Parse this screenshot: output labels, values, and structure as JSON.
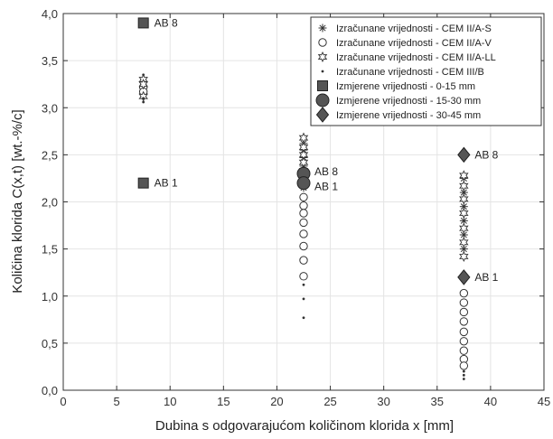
{
  "chart_data": {
    "type": "scatter",
    "title": "",
    "xlabel": "Dubina s odgovarajućom količinom klorida x [mm]",
    "ylabel": "Količina klorida C(x,t) [wt.-%/c]",
    "xlim": [
      0,
      45
    ],
    "ylim": [
      0,
      4.0
    ],
    "x_ticks": [
      0,
      5,
      10,
      15,
      20,
      25,
      30,
      35,
      40,
      45
    ],
    "x_tick_labels": [
      "0",
      "5",
      "10",
      "15",
      "20",
      "25",
      "30",
      "35",
      "40",
      "45"
    ],
    "y_ticks": [
      0,
      0.5,
      1.0,
      1.5,
      2.0,
      2.5,
      3.0,
      3.5,
      4.0
    ],
    "y_tick_labels": [
      "0,0",
      "0,5",
      "1,0",
      "1,5",
      "2,0",
      "2,5",
      "3,0",
      "3,5",
      "4,0"
    ],
    "grid": true,
    "legend_position": "top-right",
    "series": [
      {
        "name": "Izračunane vrijednosti - CEM II/A-S",
        "marker": "asterisk",
        "color": "#333333",
        "points": [
          {
            "x": 7.5,
            "y": 3.27
          },
          {
            "x": 7.5,
            "y": 3.21
          },
          {
            "x": 7.5,
            "y": 3.15
          },
          {
            "x": 22.5,
            "y": 2.62
          },
          {
            "x": 22.5,
            "y": 2.55
          },
          {
            "x": 22.5,
            "y": 2.47
          },
          {
            "x": 22.5,
            "y": 2.38
          },
          {
            "x": 22.5,
            "y": 2.28
          },
          {
            "x": 22.5,
            "y": 2.15
          },
          {
            "x": 37.5,
            "y": 2.25
          },
          {
            "x": 37.5,
            "y": 2.1
          },
          {
            "x": 37.5,
            "y": 1.95
          },
          {
            "x": 37.5,
            "y": 1.8
          },
          {
            "x": 37.5,
            "y": 1.65
          },
          {
            "x": 37.5,
            "y": 1.5
          }
        ]
      },
      {
        "name": "Izračunane vrijednosti - CEM II/A-V",
        "marker": "circle-open",
        "color": "#333333",
        "points": [
          {
            "x": 7.5,
            "y": 3.22
          },
          {
            "x": 7.5,
            "y": 3.17
          },
          {
            "x": 22.5,
            "y": 2.05
          },
          {
            "x": 22.5,
            "y": 1.96
          },
          {
            "x": 22.5,
            "y": 1.88
          },
          {
            "x": 22.5,
            "y": 1.78
          },
          {
            "x": 22.5,
            "y": 1.66
          },
          {
            "x": 22.5,
            "y": 1.53
          },
          {
            "x": 22.5,
            "y": 1.38
          },
          {
            "x": 22.5,
            "y": 1.21
          },
          {
            "x": 37.5,
            "y": 1.03
          },
          {
            "x": 37.5,
            "y": 0.93
          },
          {
            "x": 37.5,
            "y": 0.83
          },
          {
            "x": 37.5,
            "y": 0.73
          },
          {
            "x": 37.5,
            "y": 0.62
          },
          {
            "x": 37.5,
            "y": 0.52
          },
          {
            "x": 37.5,
            "y": 0.42
          },
          {
            "x": 37.5,
            "y": 0.33
          },
          {
            "x": 37.5,
            "y": 0.26
          }
        ]
      },
      {
        "name": "Izračunane vrijednosti - CEM II/A-LL",
        "marker": "star-open",
        "color": "#333333",
        "points": [
          {
            "x": 7.5,
            "y": 3.3
          },
          {
            "x": 7.5,
            "y": 3.25
          },
          {
            "x": 7.5,
            "y": 3.12
          },
          {
            "x": 22.5,
            "y": 2.68
          },
          {
            "x": 22.5,
            "y": 2.58
          },
          {
            "x": 22.5,
            "y": 2.5
          },
          {
            "x": 22.5,
            "y": 2.42
          },
          {
            "x": 22.5,
            "y": 2.33
          },
          {
            "x": 22.5,
            "y": 2.24
          },
          {
            "x": 37.5,
            "y": 2.28
          },
          {
            "x": 37.5,
            "y": 2.17
          },
          {
            "x": 37.5,
            "y": 2.03
          },
          {
            "x": 37.5,
            "y": 1.88
          },
          {
            "x": 37.5,
            "y": 1.72
          },
          {
            "x": 37.5,
            "y": 1.57
          },
          {
            "x": 37.5,
            "y": 1.42
          }
        ]
      },
      {
        "name": "Izračunane vrijednosti - CEM III/B",
        "marker": "dot",
        "color": "#333333",
        "points": [
          {
            "x": 7.5,
            "y": 3.35
          },
          {
            "x": 7.5,
            "y": 3.1
          },
          {
            "x": 7.5,
            "y": 3.06
          },
          {
            "x": 22.5,
            "y": 1.12
          },
          {
            "x": 22.5,
            "y": 0.97
          },
          {
            "x": 22.5,
            "y": 0.77
          },
          {
            "x": 37.5,
            "y": 0.2
          },
          {
            "x": 37.5,
            "y": 0.16
          },
          {
            "x": 37.5,
            "y": 0.12
          }
        ]
      },
      {
        "name": "Izmjerene vrijednosti - 0-15 mm",
        "marker": "square-filled",
        "color": "#555555",
        "points": [
          {
            "x": 7.5,
            "y": 3.9,
            "label": "AB 8"
          },
          {
            "x": 7.5,
            "y": 2.2,
            "label": "AB 1"
          }
        ]
      },
      {
        "name": "Izmjerene vrijednosti - 15-30 mm",
        "marker": "circle-filled",
        "color": "#555555",
        "points": [
          {
            "x": 22.5,
            "y": 2.3,
            "label": "AB 8"
          },
          {
            "x": 22.5,
            "y": 2.2,
            "label": "AB 1"
          }
        ]
      },
      {
        "name": "Izmjerene vrijednosti - 30-45 mm",
        "marker": "diamond-filled",
        "color": "#555555",
        "points": [
          {
            "x": 37.5,
            "y": 2.5,
            "label": "AB 8"
          },
          {
            "x": 37.5,
            "y": 1.2,
            "label": "AB 1"
          }
        ]
      }
    ]
  }
}
